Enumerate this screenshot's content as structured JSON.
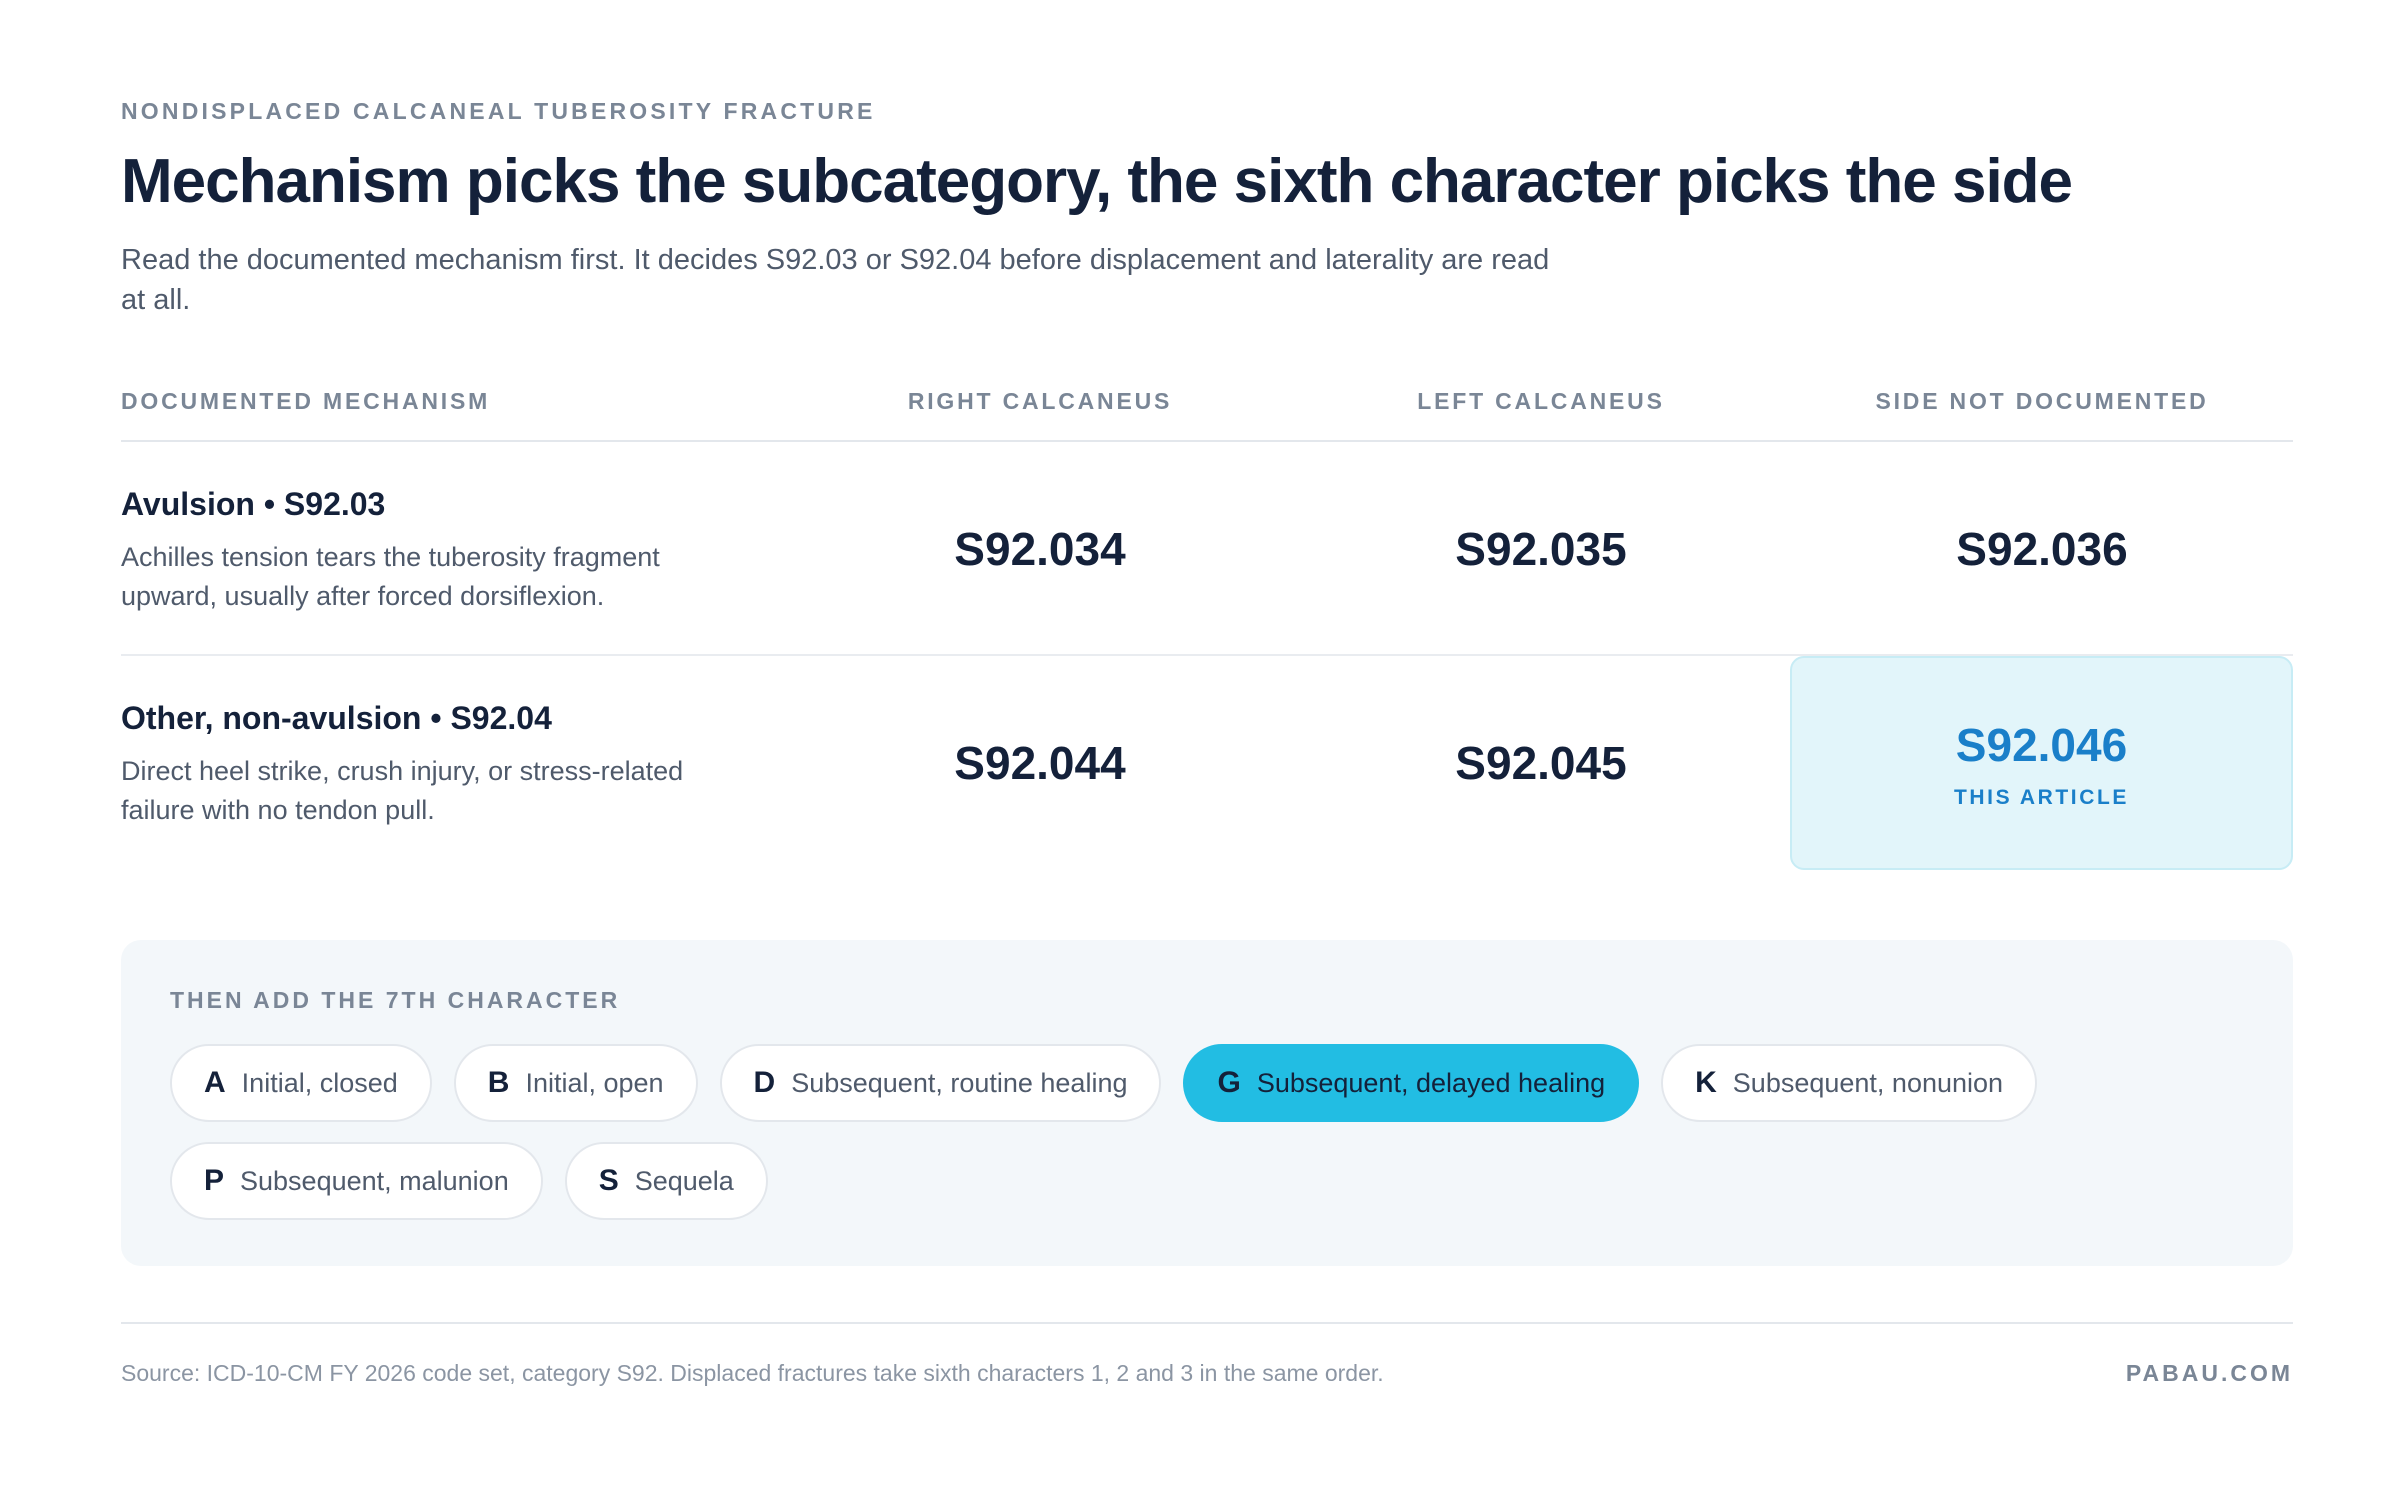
{
  "header": {
    "eyebrow": "NONDISPLACED CALCANEAL TUBEROSITY FRACTURE",
    "title": "Mechanism picks the subcategory, the sixth character picks the side",
    "subtitle": "Read the documented mechanism first. It decides S92.03 or S92.04 before displacement and laterality are read at all."
  },
  "table": {
    "columns": [
      "DOCUMENTED MECHANISM",
      "RIGHT CALCANEUS",
      "LEFT CALCANEUS",
      "SIDE NOT DOCUMENTED"
    ],
    "rows": [
      {
        "name": "Avulsion • S92.03",
        "desc": "Achilles tension tears the tuberosity fragment upward, usually after forced dorsiflexion.",
        "right": "S92.034",
        "left": "S92.035",
        "unspecified": "S92.036"
      },
      {
        "name": "Other, non-avulsion • S92.04",
        "desc": "Direct heel strike, crush injury, or stress-related failure with no tendon pull.",
        "right": "S92.044",
        "left": "S92.045",
        "unspecified": "S92.046",
        "tag": "THIS ARTICLE"
      }
    ]
  },
  "seventh": {
    "label": "THEN ADD THE 7TH CHARACTER",
    "chips": [
      {
        "letter": "A",
        "desc": "Initial, closed"
      },
      {
        "letter": "B",
        "desc": "Initial, open"
      },
      {
        "letter": "D",
        "desc": "Subsequent, routine healing"
      },
      {
        "letter": "G",
        "desc": "Subsequent, delayed healing",
        "active": true
      },
      {
        "letter": "K",
        "desc": "Subsequent, nonunion"
      },
      {
        "letter": "P",
        "desc": "Subsequent, malunion"
      },
      {
        "letter": "S",
        "desc": "Sequela"
      }
    ]
  },
  "footer": {
    "source": "Source: ICD-10-CM FY 2026 code set, category S92. Displaced fractures take sixth characters 1, 2 and 3 in the same order.",
    "brand": "PABAU.COM"
  },
  "colors": {
    "accent": "#22bde3",
    "highlight_bg": "#e2f5fa",
    "highlight_text": "#1a7fc9",
    "ink": "#14213a",
    "muted": "#7a8696"
  }
}
